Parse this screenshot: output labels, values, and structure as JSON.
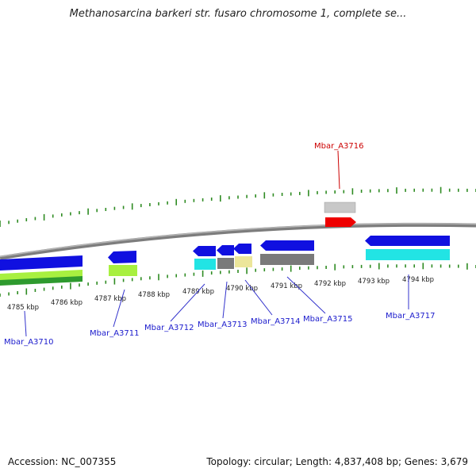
{
  "title": "Methanosarcina barkeri str. fusaro chromosome 1, complete se...",
  "footer": {
    "accession": "Accession: NC_007355",
    "summary": "Topology: circular; Length: 4,837,408 bp; Genes: 3,679"
  },
  "colors": {
    "backbone": "#888888",
    "tick": "#2e8b22",
    "label_blue": "#1a1acc",
    "label_red": "#cc0000",
    "blue": "#1010e0",
    "cyan": "#22e4e4",
    "lime": "#a8f040",
    "green": "#2e9a2e",
    "gray": "#7a7a7a",
    "lightgray": "#c8c8c8",
    "khaki": "#ece69a",
    "red": "#ee0000"
  },
  "kbp_labels": [
    "4785 kbp",
    "4786 kbp",
    "4787 kbp",
    "4788 kbp",
    "4789 kbp",
    "4790 kbp",
    "4791 kbp",
    "4792 kbp",
    "4793 kbp",
    "4794 kbp"
  ],
  "genes": [
    {
      "id": "Mbar_A3710",
      "color": "label_blue"
    },
    {
      "id": "Mbar_A3711",
      "color": "label_blue"
    },
    {
      "id": "Mbar_A3712",
      "color": "label_blue"
    },
    {
      "id": "Mbar_A3713",
      "color": "label_blue"
    },
    {
      "id": "Mbar_A3714",
      "color": "label_blue"
    },
    {
      "id": "Mbar_A3715",
      "color": "label_blue"
    },
    {
      "id": "Mbar_A3716",
      "color": "label_red"
    },
    {
      "id": "Mbar_A3717",
      "color": "label_blue"
    }
  ]
}
